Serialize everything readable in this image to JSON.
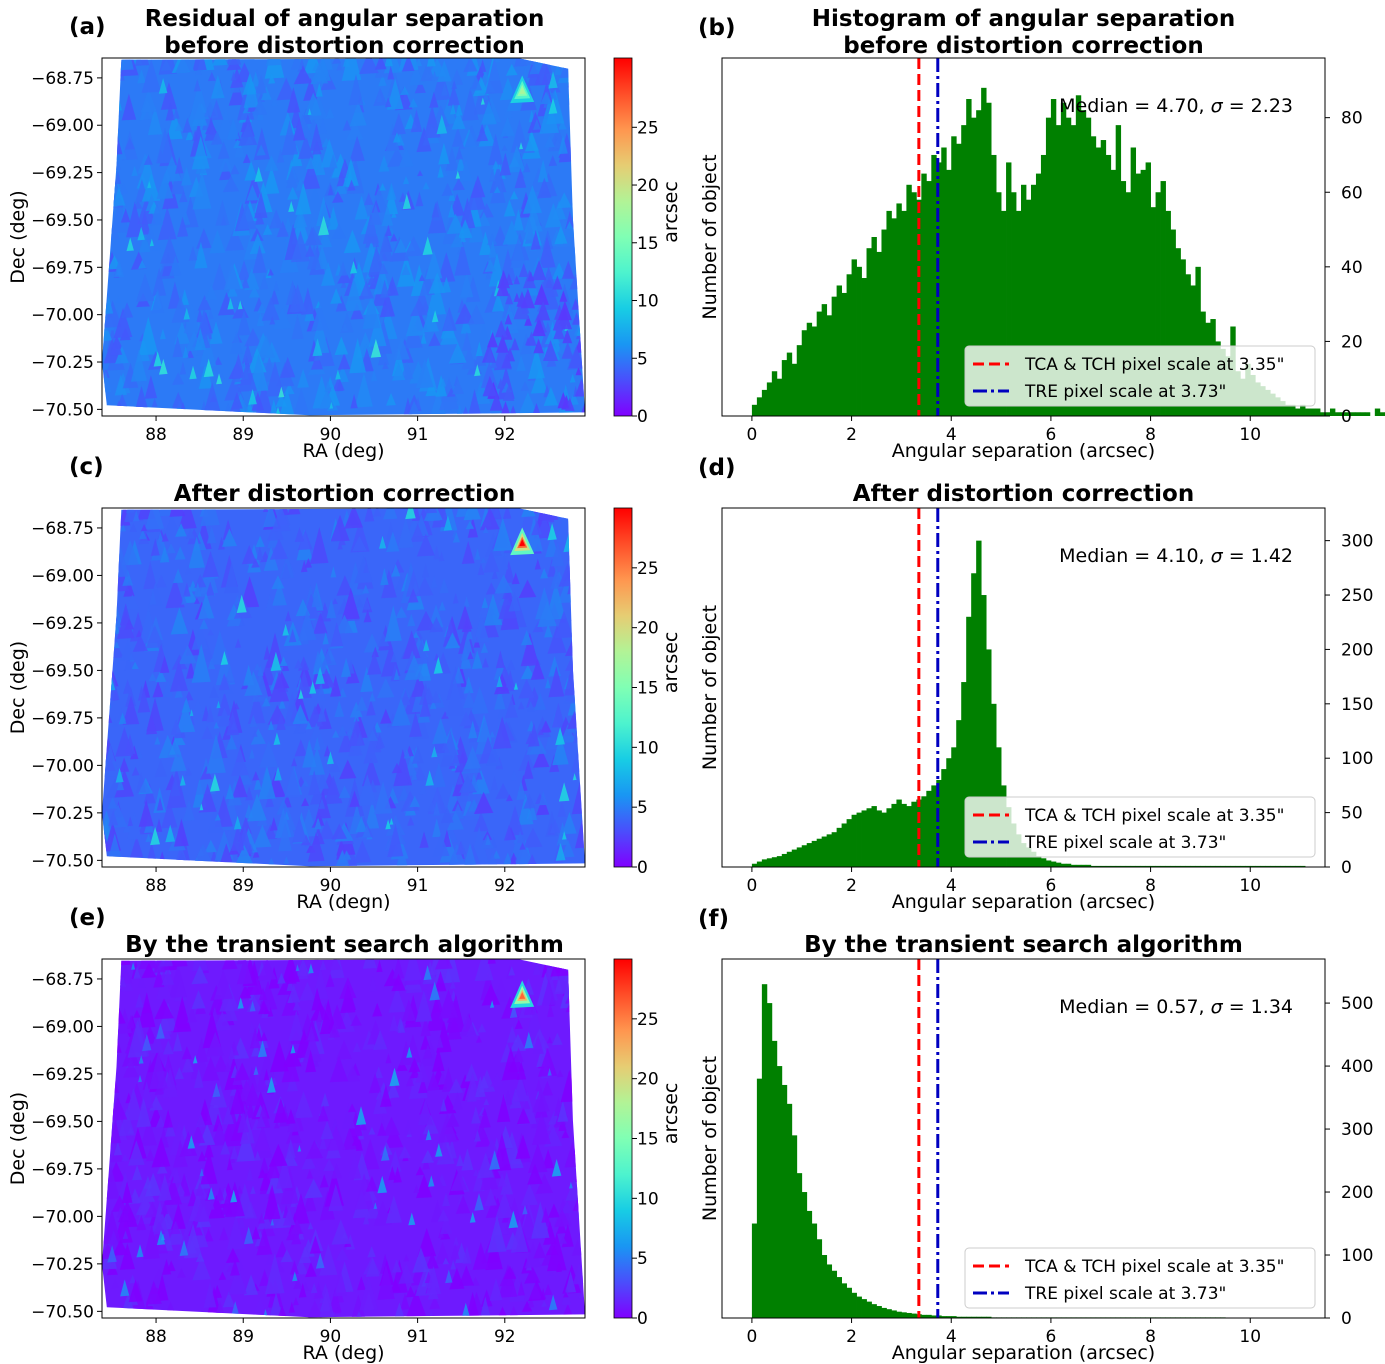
{
  "figure": {
    "colorbar_label": "arcsec",
    "colorbar_ticks": [
      "0",
      "5",
      "10",
      "15",
      "20",
      "25"
    ],
    "colormap": [
      "#8000ff",
      "#4a4efc",
      "#1996f3",
      "#18cde4",
      "#4df3ce",
      "#80ffb4",
      "#b2f396",
      "#e6cd73",
      "#ff964f",
      "#ff4e28",
      "#ff0000"
    ]
  },
  "chart_data": [
    {
      "panel": "(a)",
      "type": "heatmap",
      "title": [
        "Residual of angular separation",
        "before distortion correction"
      ],
      "xlabel": "RA (deg)",
      "ylabel": "Dec (deg)",
      "x_ticks": [
        "88",
        "89",
        "90",
        "91",
        "92"
      ],
      "y_ticks": [
        "−68.75",
        "−69.00",
        "−69.25",
        "−69.50",
        "−69.75",
        "−70.00",
        "−70.25",
        "−70.50"
      ],
      "colorbar": {
        "label": "arcsec",
        "range": [
          0,
          31
        ],
        "ticks": [
          0,
          5,
          10,
          15,
          20,
          25
        ]
      },
      "dominant_value_arcsec": 5,
      "hotspots_arcsec": [
        {
          "ra": 92.2,
          "dec": -68.82,
          "value": 18
        }
      ]
    },
    {
      "panel": "(b)",
      "type": "bar",
      "title": [
        "Histogram of angular separation",
        "before distortion correction"
      ],
      "xlabel": "Angular separation (arcsec)",
      "ylabel": "Number of object",
      "x_ticks": [
        0,
        2,
        4,
        6,
        8,
        10
      ],
      "y_ticks": [
        0,
        20,
        40,
        60,
        80
      ],
      "xlim": [
        -0.6,
        11.5
      ],
      "ylim": [
        0,
        96
      ],
      "bin_start": 0,
      "bin_width": 0.1,
      "values": [
        3,
        5,
        7,
        9,
        12,
        10,
        15,
        17,
        14,
        19,
        23,
        25,
        24,
        28,
        30,
        27,
        32,
        35,
        33,
        38,
        42,
        40,
        37,
        45,
        48,
        44,
        50,
        55,
        53,
        57,
        55,
        62,
        60,
        58,
        65,
        63,
        70,
        68,
        72,
        66,
        75,
        73,
        78,
        85,
        80,
        82,
        88,
        84,
        70,
        60,
        55,
        68,
        60,
        55,
        62,
        58,
        62,
        65,
        70,
        80,
        85,
        78,
        84,
        80,
        78,
        86,
        82,
        80,
        75,
        72,
        74,
        70,
        66,
        78,
        63,
        60,
        72,
        65,
        66,
        68,
        56,
        60,
        63,
        55,
        50,
        45,
        42,
        38,
        35,
        40,
        28,
        25,
        26,
        20,
        18,
        16,
        24,
        12,
        10,
        14,
        11,
        9,
        8,
        7,
        6,
        5,
        4,
        3,
        3,
        2,
        3,
        2,
        2,
        2,
        1,
        1,
        2,
        1,
        1,
        1,
        1,
        1,
        1,
        1,
        0,
        2,
        1,
        1,
        1,
        1,
        1,
        0,
        0,
        0,
        0,
        0,
        0,
        0,
        0,
        0,
        0,
        0,
        0,
        0,
        0,
        0,
        0,
        0,
        0,
        0
      ],
      "vlines": [
        {
          "x": 3.35,
          "label": "TCA & TCH pixel scale at 3.35\"",
          "color": "#ff0000",
          "style": "dashed"
        },
        {
          "x": 3.73,
          "label": "TRE pixel scale at 3.73\"",
          "color": "#0000c0",
          "style": "dashdot"
        }
      ],
      "annotation": {
        "prefix": "Median = 4.70, ",
        "sigma": "σ",
        "suffix": " = 2.23"
      },
      "bar_color": "#008000",
      "legend": "lower right",
      "y_axis_side": "right"
    },
    {
      "panel": "(c)",
      "type": "heatmap",
      "title": [
        "After distortion correction"
      ],
      "xlabel": "RA (degn)",
      "ylabel": "Dec (deg)",
      "x_ticks": [
        "88",
        "89",
        "90",
        "91",
        "92"
      ],
      "y_ticks": [
        "−68.75",
        "−69.00",
        "−69.25",
        "−69.50",
        "−69.75",
        "−70.00",
        "−70.25",
        "−70.50"
      ],
      "colorbar": {
        "label": "arcsec",
        "range": [
          0,
          30
        ],
        "ticks": [
          0,
          5,
          10,
          15,
          20,
          25
        ]
      },
      "dominant_value_arcsec": 4,
      "hotspots_arcsec": [
        {
          "ra": 92.2,
          "dec": -68.83,
          "value": 30
        }
      ]
    },
    {
      "panel": "(d)",
      "type": "bar",
      "title": [
        "After distortion correction"
      ],
      "xlabel": "Angular separation (arcsec)",
      "ylabel": "Number of object",
      "x_ticks": [
        0,
        2,
        4,
        6,
        8,
        10
      ],
      "y_ticks": [
        0,
        50,
        100,
        150,
        200,
        250,
        300
      ],
      "xlim": [
        -0.6,
        11.5
      ],
      "ylim": [
        0,
        330
      ],
      "bin_start": 0,
      "bin_width": 0.1,
      "values": [
        3,
        5,
        7,
        8,
        9,
        10,
        12,
        14,
        16,
        18,
        20,
        22,
        24,
        26,
        28,
        30,
        32,
        36,
        40,
        44,
        48,
        50,
        52,
        54,
        56,
        52,
        50,
        54,
        58,
        62,
        58,
        56,
        60,
        62,
        65,
        70,
        75,
        80,
        90,
        100,
        110,
        135,
        170,
        230,
        270,
        300,
        250,
        200,
        150,
        110,
        75,
        55,
        40,
        30,
        22,
        18,
        14,
        10,
        8,
        6,
        5,
        4,
        3,
        3,
        2,
        2,
        2,
        2,
        1,
        1,
        1,
        1,
        1,
        1,
        1,
        1,
        1,
        1,
        1,
        1,
        1,
        1,
        1,
        1,
        1,
        1,
        1,
        1,
        1,
        1,
        1,
        1,
        1,
        1,
        1,
        1,
        1,
        1,
        1,
        1,
        1,
        1,
        1,
        1,
        1,
        1,
        1,
        1,
        1,
        1,
        1,
        0,
        0,
        0,
        0,
        0,
        0,
        0,
        0,
        0
      ],
      "vlines": [
        {
          "x": 3.35,
          "label": "TCA & TCH pixel scale at 3.35\"",
          "color": "#ff0000",
          "style": "dashed"
        },
        {
          "x": 3.73,
          "label": "TRE pixel scale at 3.73\"",
          "color": "#0000c0",
          "style": "dashdot"
        }
      ],
      "annotation": {
        "prefix": "Median = 4.10, ",
        "sigma": "σ",
        "suffix": " = 1.42"
      },
      "bar_color": "#008000",
      "legend": "lower right",
      "y_axis_side": "right"
    },
    {
      "panel": "(e)",
      "type": "heatmap",
      "title": [
        "By the transient search algorithm"
      ],
      "xlabel": "RA (deg)",
      "ylabel": "Dec (deg)",
      "x_ticks": [
        "88",
        "89",
        "90",
        "91",
        "92"
      ],
      "y_ticks": [
        "−68.75",
        "−69.00",
        "−69.25",
        "−69.50",
        "−69.75",
        "−70.00",
        "−70.25",
        "−70.50"
      ],
      "colorbar": {
        "label": "arcsec",
        "range": [
          0,
          30
        ],
        "ticks": [
          0,
          5,
          10,
          15,
          20,
          25
        ]
      },
      "dominant_value_arcsec": 1,
      "hotspots_arcsec": [
        {
          "ra": 92.2,
          "dec": -68.84,
          "value": 26
        }
      ]
    },
    {
      "panel": "(f)",
      "type": "bar",
      "title": [
        "By the transient search algorithm"
      ],
      "xlabel": "Angular separation (arcsec)",
      "ylabel": "Number of object",
      "x_ticks": [
        0,
        2,
        4,
        6,
        8,
        10
      ],
      "y_ticks": [
        0,
        100,
        200,
        300,
        400,
        500
      ],
      "xlim": [
        -0.6,
        11.5
      ],
      "ylim": [
        0,
        570
      ],
      "bin_start": 0,
      "bin_width": 0.1,
      "values": [
        150,
        380,
        530,
        500,
        440,
        400,
        370,
        340,
        290,
        230,
        200,
        170,
        150,
        125,
        100,
        85,
        75,
        65,
        55,
        48,
        40,
        34,
        30,
        26,
        22,
        19,
        16,
        14,
        12,
        10,
        9,
        8,
        7,
        6,
        5,
        5,
        4,
        4,
        3,
        3,
        3,
        2,
        2,
        2,
        2,
        2,
        2,
        2,
        1,
        1,
        1,
        1,
        1,
        1,
        1,
        1,
        1,
        1,
        1,
        1,
        1,
        1,
        1,
        1,
        1,
        1,
        1,
        1,
        1,
        1,
        1,
        1,
        1,
        1,
        1,
        1,
        1,
        1,
        1,
        1,
        1,
        1,
        1,
        1,
        1,
        1,
        1,
        1,
        1,
        1,
        1,
        1,
        1,
        1,
        1,
        0,
        0,
        0,
        0,
        0,
        0,
        0,
        0,
        0,
        0,
        0,
        0,
        0,
        0,
        0
      ],
      "vlines": [
        {
          "x": 3.35,
          "label": "TCA & TCH pixel scale at 3.35\"",
          "color": "#ff0000",
          "style": "dashed"
        },
        {
          "x": 3.73,
          "label": "TRE pixel scale at 3.73\"",
          "color": "#0000c0",
          "style": "dashdot"
        }
      ],
      "annotation": {
        "prefix": "Median = 0.57, ",
        "sigma": "σ",
        "suffix": " = 1.34"
      },
      "bar_color": "#008000",
      "legend": "lower right",
      "y_axis_side": "right"
    }
  ]
}
